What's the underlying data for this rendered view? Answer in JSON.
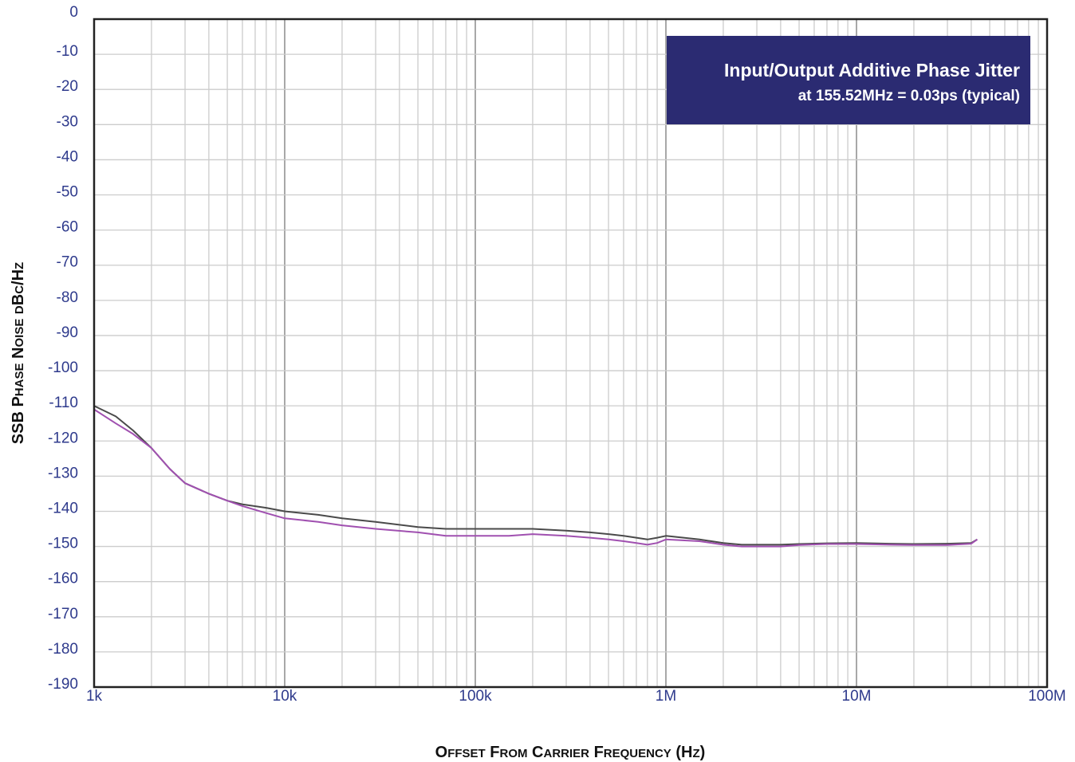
{
  "chart_data": {
    "type": "line",
    "xlabel": "Offset From Carrier Frequency (Hz)",
    "ylabel": "SSB Phase Noise dBc/Hz",
    "xscale": "log",
    "xlim": [
      1000,
      100000000
    ],
    "ylim": [
      -190,
      0
    ],
    "grid": true,
    "x_tick_labels": [
      "1k",
      "10k",
      "100k",
      "1M",
      "10M",
      "100M"
    ],
    "x_tick_values": [
      1000,
      10000,
      100000,
      1000000,
      10000000,
      100000000
    ],
    "y_tick_values": [
      0,
      -10,
      -20,
      -30,
      -40,
      -50,
      -60,
      -70,
      -80,
      -90,
      -100,
      -110,
      -120,
      -130,
      -140,
      -150,
      -160,
      -170,
      -180,
      -190
    ],
    "annotation": {
      "line1": "Input/Output Additive Phase Jitter",
      "line2": "at 155.52MHz = 0.03ps (typical)",
      "placement": "top-right",
      "background": "#2b2b72",
      "text_color": "#ffffff"
    },
    "series": [
      {
        "color": "#4a4a4a",
        "x": [
          1000,
          1300,
          1600,
          2000,
          2500,
          3000,
          4000,
          5000,
          6000,
          8000,
          10000,
          15000,
          20000,
          30000,
          50000,
          70000,
          100000,
          150000,
          200000,
          300000,
          400000,
          500000,
          600000,
          700000,
          800000,
          900000,
          1000000,
          1500000,
          2000000,
          2500000,
          3000000,
          4000000,
          5000000,
          7000000,
          10000000,
          15000000,
          20000000,
          30000000,
          40000000,
          43000000
        ],
        "y": [
          -110,
          -113,
          -117,
          -122,
          -128,
          -132,
          -135,
          -137,
          -138,
          -139,
          -140,
          -141,
          -142,
          -143,
          -144.5,
          -145,
          -145,
          -145,
          -145,
          -145.5,
          -146,
          -146.5,
          -147,
          -147.5,
          -148,
          -147.5,
          -147,
          -148,
          -149,
          -149.5,
          -149.5,
          -149.5,
          -149.3,
          -149.1,
          -149,
          -149.2,
          -149.3,
          -149.2,
          -149,
          -148
        ]
      },
      {
        "color": "#a050b0",
        "x": [
          1000,
          1300,
          1600,
          2000,
          2500,
          3000,
          4000,
          5000,
          6000,
          8000,
          10000,
          15000,
          20000,
          30000,
          50000,
          70000,
          100000,
          150000,
          200000,
          300000,
          400000,
          500000,
          600000,
          700000,
          800000,
          900000,
          1000000,
          1500000,
          2000000,
          2500000,
          3000000,
          4000000,
          5000000,
          7000000,
          10000000,
          15000000,
          20000000,
          30000000,
          40000000,
          43000000
        ],
        "y": [
          -111,
          -115,
          -118,
          -122,
          -128,
          -132,
          -135,
          -137,
          -138.5,
          -140.5,
          -142,
          -143,
          -144,
          -145,
          -146,
          -147,
          -147,
          -147,
          -146.5,
          -147,
          -147.5,
          -148,
          -148.5,
          -149,
          -149.5,
          -149,
          -148,
          -148.5,
          -149.5,
          -150,
          -150,
          -150,
          -149.6,
          -149.3,
          -149.3,
          -149.5,
          -149.6,
          -149.6,
          -149.2,
          -148
        ]
      }
    ]
  }
}
